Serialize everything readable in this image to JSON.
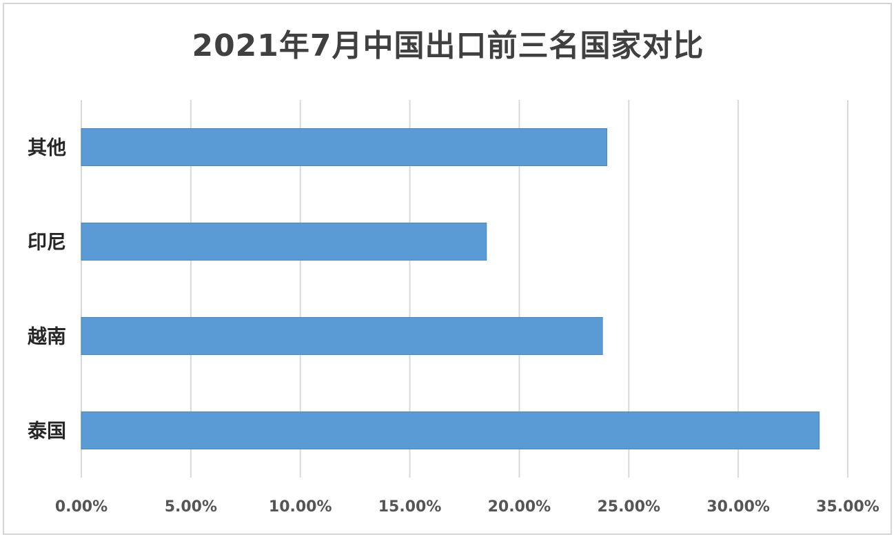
{
  "chart_data": {
    "type": "bar",
    "orientation": "horizontal",
    "title": "2021年7月中国出口前三名国家对比",
    "categories": [
      "其他",
      "印尼",
      "越南",
      "泰国"
    ],
    "values": [
      0.24,
      0.185,
      0.238,
      0.337
    ],
    "xlim": [
      0,
      0.35
    ],
    "xticks": [
      0,
      0.05,
      0.1,
      0.15,
      0.2,
      0.25,
      0.3,
      0.35
    ],
    "xtick_labels": [
      "0.00%",
      "5.00%",
      "10.00%",
      "15.00%",
      "20.00%",
      "25.00%",
      "30.00%",
      "35.00%"
    ],
    "xlabel": "",
    "ylabel": "",
    "grid": true,
    "legend": "none",
    "bar_color": "#5b9bd5",
    "grid_color": "#d9d9d9"
  }
}
